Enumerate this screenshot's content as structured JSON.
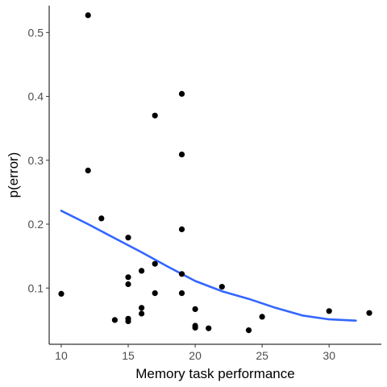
{
  "chart_data": {
    "type": "scatter",
    "xlabel": "Memory task performance",
    "ylabel": "p(error)",
    "xlim": [
      9.1,
      33.9
    ],
    "ylim": [
      0.012,
      0.542
    ],
    "x_ticks": [
      10,
      15,
      20,
      25,
      30
    ],
    "y_ticks": [
      0.1,
      0.2,
      0.3,
      0.4,
      0.5
    ],
    "grid": false,
    "point_color": "#000000",
    "smooth_color": "#3366FF",
    "points": [
      {
        "x": 10,
        "y": 0.091
      },
      {
        "x": 12,
        "y": 0.527
      },
      {
        "x": 12,
        "y": 0.284
      },
      {
        "x": 13,
        "y": 0.209
      },
      {
        "x": 14,
        "y": 0.05
      },
      {
        "x": 15,
        "y": 0.179
      },
      {
        "x": 15,
        "y": 0.117
      },
      {
        "x": 15,
        "y": 0.106
      },
      {
        "x": 15,
        "y": 0.052
      },
      {
        "x": 15,
        "y": 0.048
      },
      {
        "x": 16,
        "y": 0.127
      },
      {
        "x": 16,
        "y": 0.069
      },
      {
        "x": 16,
        "y": 0.06
      },
      {
        "x": 17,
        "y": 0.37
      },
      {
        "x": 17,
        "y": 0.138
      },
      {
        "x": 17,
        "y": 0.092
      },
      {
        "x": 19,
        "y": 0.404
      },
      {
        "x": 19,
        "y": 0.309
      },
      {
        "x": 19,
        "y": 0.192
      },
      {
        "x": 19,
        "y": 0.122
      },
      {
        "x": 19,
        "y": 0.092
      },
      {
        "x": 20,
        "y": 0.067
      },
      {
        "x": 20,
        "y": 0.041
      },
      {
        "x": 20,
        "y": 0.038
      },
      {
        "x": 21,
        "y": 0.037
      },
      {
        "x": 22,
        "y": 0.102
      },
      {
        "x": 24,
        "y": 0.034
      },
      {
        "x": 25,
        "y": 0.055
      },
      {
        "x": 30,
        "y": 0.064
      },
      {
        "x": 33,
        "y": 0.061
      }
    ],
    "smooth": {
      "method": "loess",
      "x": [
        10,
        12,
        14,
        16,
        18,
        20,
        22,
        24,
        26,
        28,
        30,
        32
      ],
      "y": [
        0.221,
        0.2,
        0.178,
        0.156,
        0.133,
        0.111,
        0.095,
        0.083,
        0.069,
        0.057,
        0.051,
        0.049
      ]
    }
  }
}
